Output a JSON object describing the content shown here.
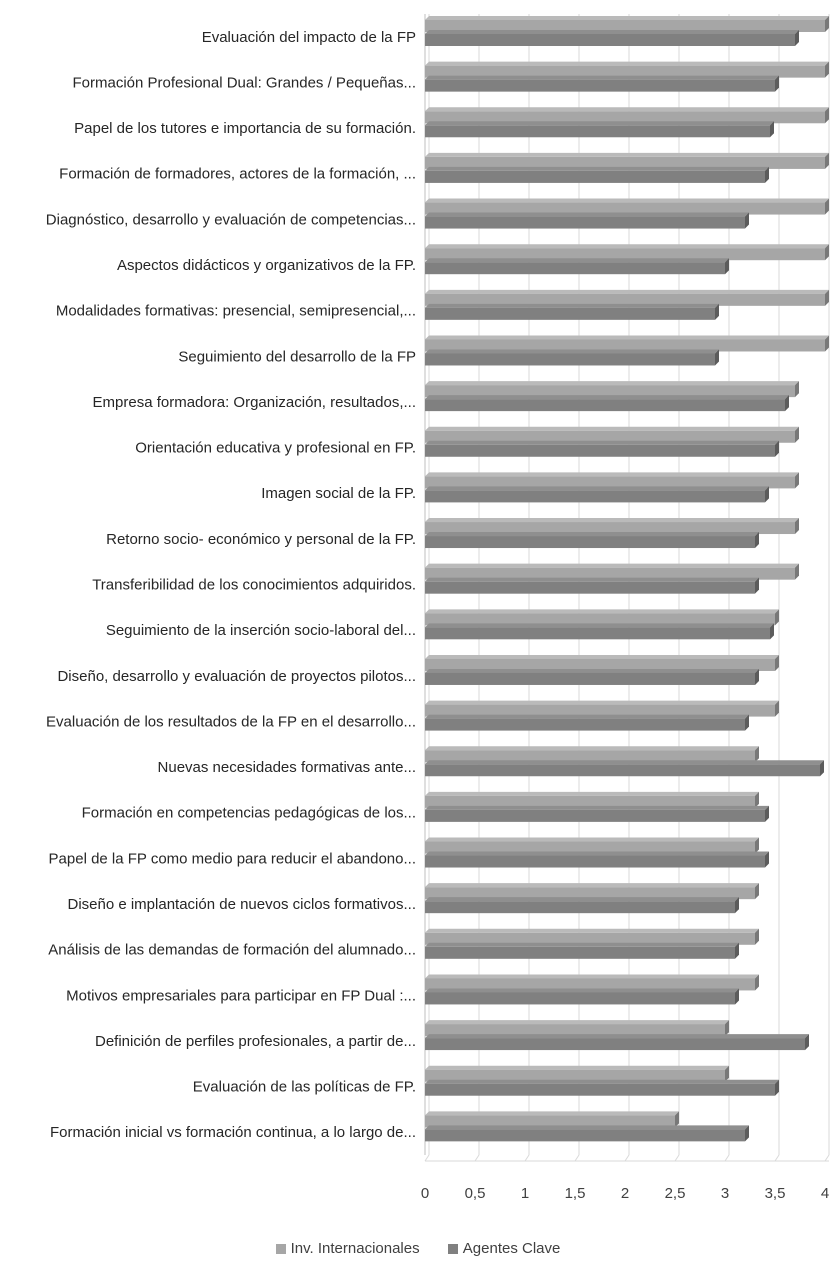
{
  "chart_data": {
    "type": "bar",
    "orientation": "horizontal",
    "title": "",
    "xlabel": "",
    "ylabel": "",
    "xlim": [
      0,
      4
    ],
    "x_ticks": [
      "0",
      "0,5",
      "1",
      "1,5",
      "2",
      "2,5",
      "3",
      "3,5",
      "4"
    ],
    "grid": true,
    "legend_position": "bottom",
    "categories": [
      "Evaluación del impacto de la FP",
      "Formación Profesional Dual: Grandes / Pequeñas...",
      "Papel de los tutores e importancia de su formación.",
      "Formación de formadores, actores de la formación, ...",
      "Diagnóstico, desarrollo y evaluación de competencias...",
      "Aspectos didácticos y organizativos de la FP.",
      "Modalidades formativas: presencial, semipresencial,...",
      "Seguimiento del desarrollo de la FP",
      "Empresa formadora: Organización, resultados,...",
      "Orientación educativa y profesional en FP.",
      "Imagen social de la FP.",
      "Retorno socio- económico y personal de la FP.",
      "Transferibilidad de los conocimientos adquiridos.",
      "Seguimiento de la inserción socio-laboral del...",
      "Diseño, desarrollo y evaluación de proyectos pilotos...",
      "Evaluación de los resultados de la FP en el desarrollo...",
      "Nuevas necesidades formativas ante...",
      "Formación en competencias pedagógicas de los...",
      "Papel de la FP como medio para reducir el abandono...",
      "Diseño e implantación de nuevos ciclos formativos...",
      "Análisis de las demandas de formación del alumnado...",
      "Motivos empresariales para participar en FP Dual :...",
      "Definición de perfiles profesionales, a partir de...",
      "Evaluación de las políticas de FP.",
      "Formación inicial vs formación continua, a lo largo de..."
    ],
    "series": [
      {
        "name": "Inv. Internacionales",
        "color": "#a6a6a6",
        "values": [
          4,
          4,
          4,
          4,
          4,
          4,
          4,
          4,
          3.7,
          3.7,
          3.7,
          3.7,
          3.7,
          3.5,
          3.5,
          3.5,
          3.3,
          3.3,
          3.3,
          3.3,
          3.3,
          3.3,
          3.0,
          3.0,
          2.5
        ]
      },
      {
        "name": "Agentes Clave",
        "color": "#808080",
        "values": [
          3.7,
          3.5,
          3.45,
          3.4,
          3.2,
          3.0,
          2.9,
          2.9,
          3.6,
          3.5,
          3.4,
          3.3,
          3.3,
          3.45,
          3.3,
          3.2,
          3.95,
          3.4,
          3.4,
          3.1,
          3.1,
          3.1,
          3.8,
          3.5,
          3.2
        ]
      }
    ]
  }
}
